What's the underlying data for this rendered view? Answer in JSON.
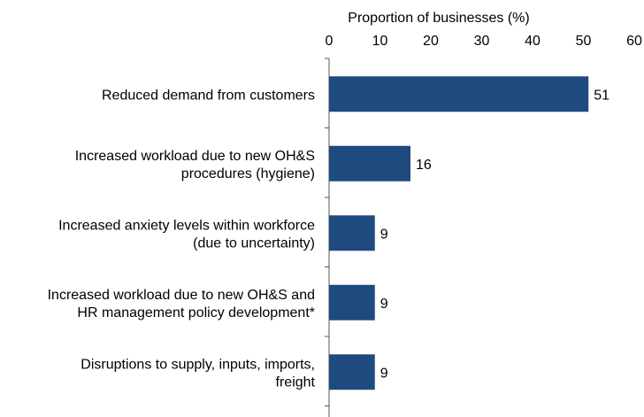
{
  "chart_data": {
    "type": "bar",
    "orientation": "horizontal",
    "xlabel": "Proportion of businesses (%)",
    "xlim": [
      0,
      60
    ],
    "ticks": [
      0,
      10,
      20,
      30,
      40,
      50,
      60
    ],
    "x_axis_position": "top",
    "grid": false,
    "categories": [
      "Reduced demand from customers",
      "Increased workload due to new OH&S procedures (hygiene)",
      "Increased anxiety levels within workforce (due to uncertainty)",
      "Increased workload due to new OH&S and HR management policy development*",
      "Disruptions to supply, inputs, imports, freight"
    ],
    "category_lines": [
      [
        "Reduced demand from customers"
      ],
      [
        "Increased workload due to new OH&S",
        "procedures (hygiene)"
      ],
      [
        "Increased anxiety levels within workforce",
        "(due to uncertainty)"
      ],
      [
        "Increased workload due to new OH&S and",
        "HR management policy development*"
      ],
      [
        "Disruptions to supply, inputs, imports,",
        "freight"
      ]
    ],
    "values": [
      51,
      16,
      9,
      9,
      9
    ],
    "bar_color": "#1f4a7f"
  }
}
